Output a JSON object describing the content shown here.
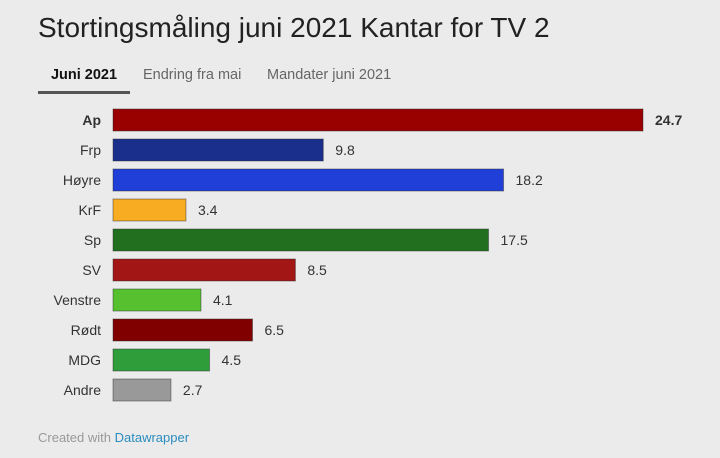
{
  "title": "Stortingsmåling juni 2021 Kantar for TV 2",
  "tabs": [
    {
      "label": "Juni 2021",
      "active": true
    },
    {
      "label": "Endring fra mai",
      "active": false
    },
    {
      "label": "Mandater juni 2021",
      "active": false
    }
  ],
  "footer": {
    "prefix": "Created with",
    "link": "Datawrapper"
  },
  "chart_data": {
    "type": "bar",
    "orientation": "horizontal",
    "title": "",
    "xlabel": "",
    "ylabel": "",
    "xlim": [
      0,
      24.7
    ],
    "grid": false,
    "categories": [
      "Ap",
      "Frp",
      "Høyre",
      "KrF",
      "Sp",
      "SV",
      "Venstre",
      "Rødt",
      "MDG",
      "Andre"
    ],
    "values": [
      24.7,
      9.8,
      18.2,
      3.4,
      17.5,
      8.5,
      4.1,
      6.5,
      4.5,
      2.7
    ],
    "value_labels": [
      "24.7",
      "9.8",
      "18.2",
      "3.4",
      "17.5",
      "8.5",
      "4.1",
      "6.5",
      "4.5",
      "2.7"
    ],
    "colors": [
      "#990000",
      "#1a2f8c",
      "#1f3fd8",
      "#f7ac21",
      "#22701f",
      "#a31616",
      "#56c02e",
      "#800000",
      "#2f9e3a",
      "#999999"
    ],
    "bold_categories": [
      "Ap"
    ]
  }
}
